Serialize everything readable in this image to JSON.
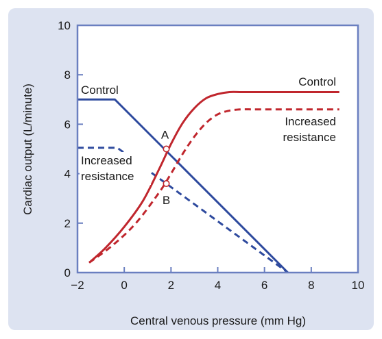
{
  "chart_data": {
    "type": "line",
    "xlabel": "Central venous pressure (mm Hg)",
    "ylabel": "Cardiac output (L/minute)",
    "xlim": [
      -2,
      10
    ],
    "ylim": [
      0,
      10
    ],
    "xticks": [
      -2,
      0,
      2,
      4,
      6,
      8,
      10
    ],
    "yticks": [
      0,
      2,
      4,
      6,
      8,
      10
    ],
    "xtick_labels": [
      "−2",
      "0",
      "2",
      "4",
      "6",
      "8",
      "10"
    ],
    "ytick_labels": [
      "0",
      "2",
      "4",
      "6",
      "8",
      "10"
    ],
    "grid": false,
    "colors": {
      "background": "#dde3f1",
      "plot_background": "#ffffff",
      "frame": "#6a7fc0",
      "venous_return": "#2e4a9e",
      "cardiac_function": "#c0262d"
    },
    "series": [
      {
        "name": "",
        "label_lines": [
          "Control"
        ],
        "group": "venous_return",
        "dashed": false,
        "x": [
          -2,
          -0.4,
          7.0
        ],
        "y": [
          7.0,
          7.0,
          0
        ]
      },
      {
        "name": "",
        "label_lines": [
          "Increased",
          "resistance"
        ],
        "group": "venous_return",
        "dashed": true,
        "x": [
          -2,
          -0.3,
          7.0
        ],
        "y": [
          5.05,
          5.05,
          0
        ]
      },
      {
        "name": "",
        "label_lines": [
          "Control"
        ],
        "group": "cardiac_function",
        "dashed": false,
        "x": [
          -1.5,
          -0.8,
          0,
          0.8,
          1.5,
          2.0,
          2.5,
          3.0,
          3.5,
          4.0,
          4.5,
          5.0,
          5.5,
          6.0,
          9.2
        ],
        "y": [
          0.4,
          1.0,
          1.85,
          2.9,
          4.2,
          5.2,
          6.05,
          6.65,
          7.05,
          7.22,
          7.3,
          7.3,
          7.3,
          7.3,
          7.3
        ]
      },
      {
        "name": "",
        "label_lines": [
          "Increased",
          "resistance"
        ],
        "group": "cardiac_function",
        "dashed": true,
        "x": [
          -1.5,
          -0.5,
          0.5,
          1.5,
          2.0,
          2.5,
          3.0,
          3.5,
          4.0,
          4.5,
          5.0,
          5.5,
          6.0,
          9.2
        ],
        "y": [
          0.4,
          1.1,
          2.0,
          3.25,
          4.0,
          4.8,
          5.5,
          6.05,
          6.4,
          6.55,
          6.6,
          6.6,
          6.6,
          6.6
        ]
      }
    ],
    "points": [
      {
        "label": "A",
        "x": 1.8,
        "y": 5.0
      },
      {
        "label": "B",
        "x": 1.8,
        "y": 3.6
      }
    ]
  }
}
